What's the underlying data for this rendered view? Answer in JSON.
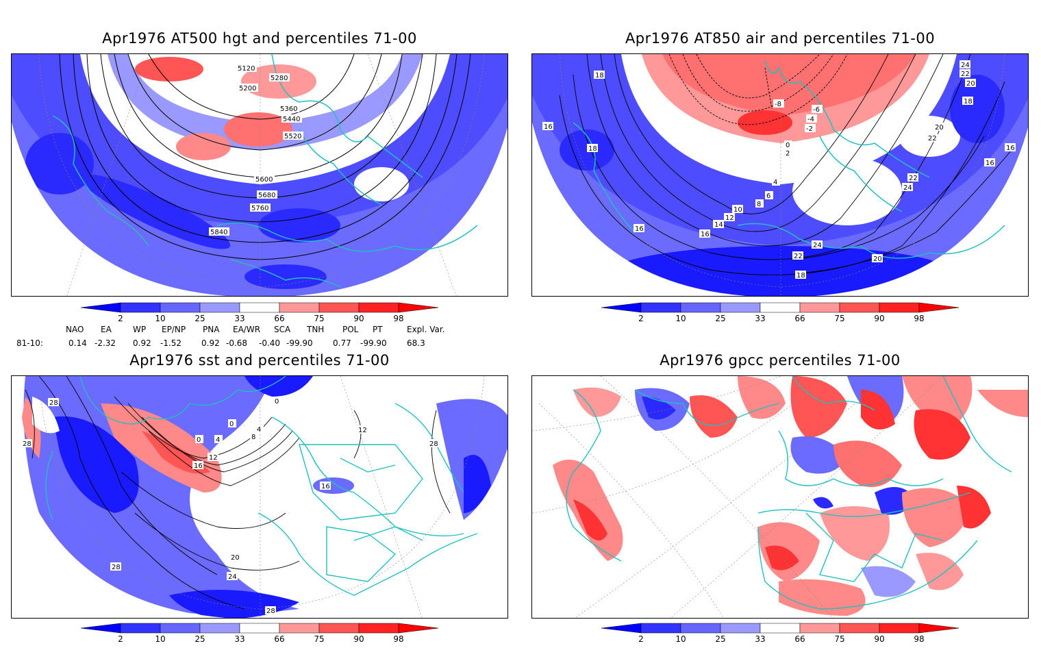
{
  "panels": [
    {
      "title": "Apr1976 AT500 hgt and percentiles 71-00",
      "contour_labels": [
        "5120",
        "5200",
        "5280",
        "5360",
        "5440",
        "5520",
        "5600",
        "5680",
        "5760",
        "5840"
      ]
    },
    {
      "title": "Apr1976 AT850 air and percentiles 71-00",
      "contour_labels": [
        "18",
        "16",
        "18",
        "24",
        "22",
        "20",
        "18",
        "16",
        "20",
        "22",
        "16",
        "22",
        "24",
        "-8",
        "-6",
        "-4",
        "-2",
        "0",
        "2",
        "4",
        "6",
        "8",
        "10",
        "12",
        "14",
        "16",
        "16",
        "24",
        "22",
        "20",
        "18"
      ]
    },
    {
      "title": "Apr1976 sst and percentiles 71-00",
      "contour_labels": [
        "28",
        "28",
        "0",
        "0",
        "4",
        "8",
        "12",
        "16",
        "0",
        "4",
        "12",
        "28",
        "16",
        "20",
        "24",
        "28",
        "28"
      ]
    },
    {
      "title": "Apr1976 gpcc percentiles 71-00",
      "contour_labels": []
    }
  ],
  "colorbar": {
    "labels": [
      "2",
      "10",
      "25",
      "33",
      "66",
      "75",
      "90",
      "98"
    ],
    "colors": [
      "#0000ff",
      "#3333ff",
      "#6666ff",
      "#9999ff",
      "#ffffff",
      "#ff9999",
      "#ff5555",
      "#ff2222",
      "#ff0000"
    ]
  },
  "indices": {
    "headers": [
      "NAO",
      "EA",
      "WP",
      "EP/NP",
      "PNA",
      "EA/WR",
      "SCA",
      "TNH",
      "POL",
      "PT",
      "Expl. Var."
    ],
    "row_label": "81-10:",
    "values": [
      "0.14",
      "-2.32",
      "0.92",
      "-1.52",
      "0.92",
      "-0.68",
      "-0.40",
      "-99.90",
      "0.77",
      "-99.90",
      "68.3"
    ]
  },
  "colors": {
    "coast": "#20c0c0",
    "strong_blue": "#0000ff",
    "mid_blue": "#4d4dff",
    "light_blue": "#7070ff",
    "strong_red": "#ff2a2a",
    "light_red": "#ff8888"
  }
}
